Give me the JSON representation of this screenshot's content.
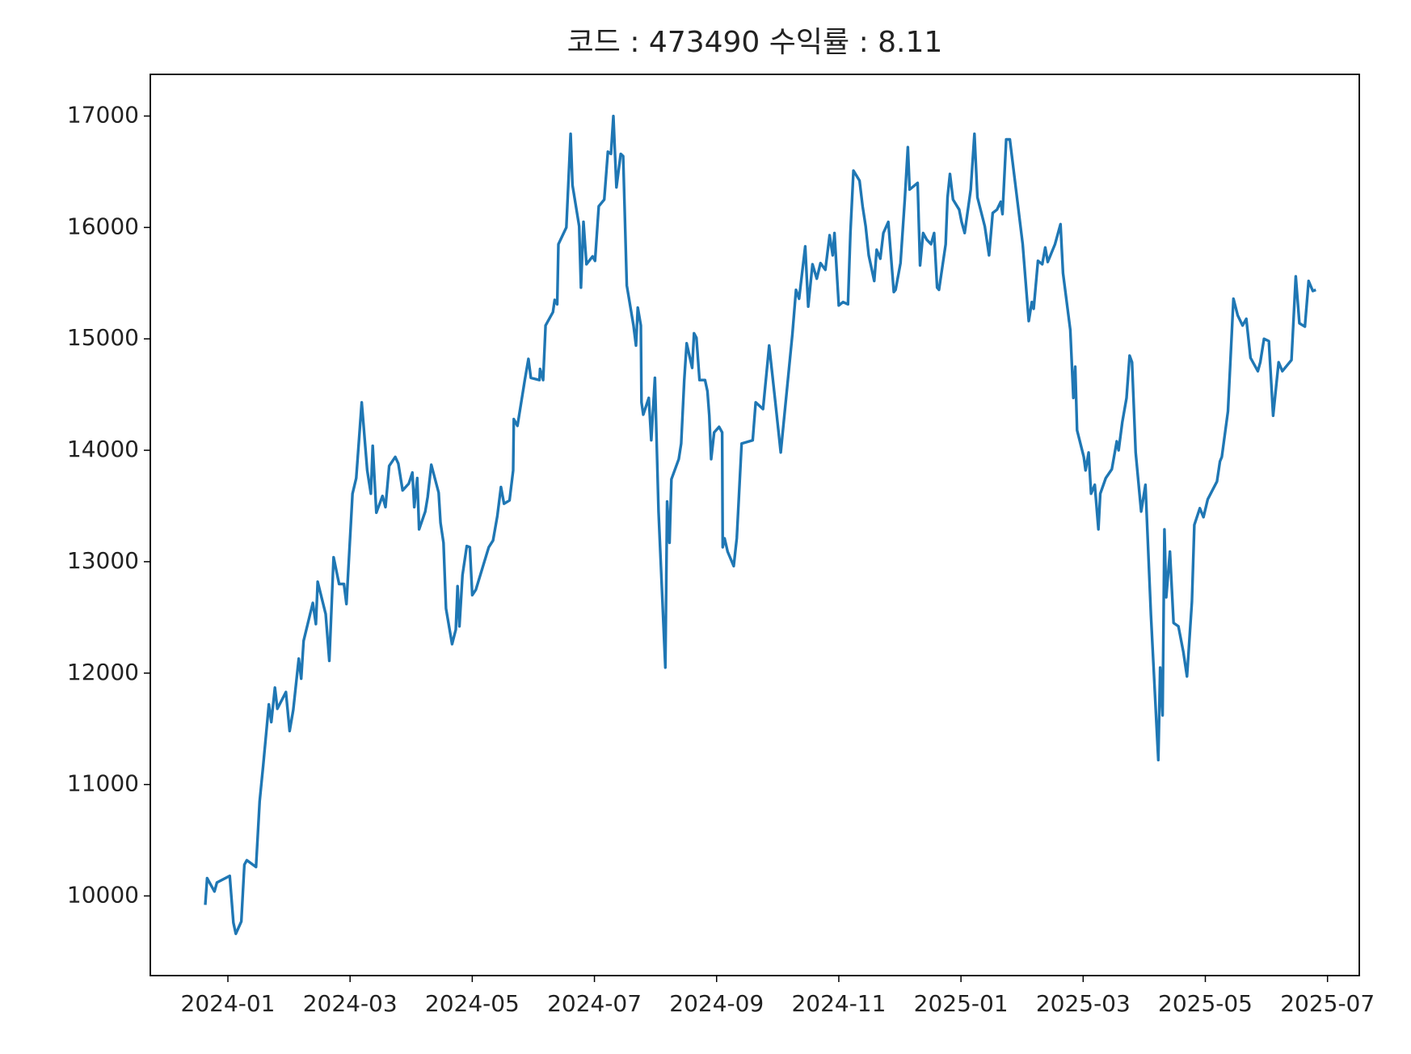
{
  "chart_data": {
    "type": "line",
    "title": "코드 : 473490 수익률 : 8.11",
    "color": "#1f77b4",
    "xlim": [
      -1.27,
      18.52
    ],
    "xticks": [
      {
        "value": 0,
        "label": "2024-01"
      },
      {
        "value": 2,
        "label": "2024-03"
      },
      {
        "value": 4,
        "label": "2024-05"
      },
      {
        "value": 6,
        "label": "2024-07"
      },
      {
        "value": 8,
        "label": "2024-09"
      },
      {
        "value": 10,
        "label": "2024-11"
      },
      {
        "value": 12,
        "label": "2025-01"
      },
      {
        "value": 14,
        "label": "2025-03"
      },
      {
        "value": 16,
        "label": "2025-05"
      },
      {
        "value": 18,
        "label": "2025-07"
      }
    ],
    "ylim": [
      9285,
      17374
    ],
    "yticks": [
      10000,
      11000,
      12000,
      13000,
      14000,
      15000,
      16000,
      17000
    ],
    "x": [
      -0.37,
      -0.34,
      -0.22,
      -0.18,
      0.03,
      0.09,
      0.13,
      0.22,
      0.27,
      0.31,
      0.46,
      0.52,
      0.58,
      0.67,
      0.71,
      0.77,
      0.81,
      0.95,
      1.01,
      1.07,
      1.16,
      1.2,
      1.24,
      1.39,
      1.44,
      1.47,
      1.6,
      1.66,
      1.73,
      1.82,
      1.9,
      1.94,
      2.04,
      2.1,
      2.19,
      2.28,
      2.34,
      2.37,
      2.43,
      2.53,
      2.58,
      2.64,
      2.74,
      2.79,
      2.86,
      2.96,
      3.02,
      3.05,
      3.1,
      3.13,
      3.23,
      3.27,
      3.33,
      3.45,
      3.48,
      3.53,
      3.57,
      3.67,
      3.73,
      3.76,
      3.79,
      3.84,
      3.91,
      3.96,
      4.0,
      4.06,
      4.27,
      4.34,
      4.41,
      4.47,
      4.52,
      4.61,
      4.67,
      4.68,
      4.74,
      4.86,
      4.92,
      4.96,
      5.1,
      5.11,
      5.16,
      5.2,
      5.32,
      5.35,
      5.39,
      5.41,
      5.54,
      5.61,
      5.64,
      5.75,
      5.78,
      5.82,
      5.87,
      5.97,
      6.01,
      6.07,
      6.16,
      6.22,
      6.27,
      6.31,
      6.36,
      6.43,
      6.47,
      6.53,
      6.64,
      6.68,
      6.71,
      6.76,
      6.77,
      6.8,
      6.89,
      6.93,
      6.99,
      7.05,
      7.16,
      7.19,
      7.23,
      7.26,
      7.38,
      7.42,
      7.47,
      7.51,
      7.6,
      7.63,
      7.67,
      7.72,
      7.81,
      7.85,
      7.88,
      7.91,
      7.96,
      8.04,
      8.09,
      8.1,
      8.13,
      8.18,
      8.28,
      8.33,
      8.41,
      8.59,
      8.64,
      8.76,
      8.86,
      8.96,
      9.05,
      9.1,
      9.24,
      9.3,
      9.35,
      9.45,
      9.5,
      9.57,
      9.64,
      9.7,
      9.78,
      9.85,
      9.9,
      9.93,
      10.0,
      10.07,
      10.15,
      10.19,
      10.24,
      10.34,
      10.39,
      10.44,
      10.49,
      10.58,
      10.62,
      10.68,
      10.73,
      10.81,
      10.9,
      10.93,
      11.01,
      11.08,
      11.13,
      11.16,
      11.29,
      11.33,
      11.38,
      11.44,
      11.51,
      11.56,
      11.61,
      11.64,
      11.75,
      11.78,
      11.82,
      11.87,
      11.97,
      12.01,
      12.06,
      12.16,
      12.22,
      12.27,
      12.39,
      12.46,
      12.52,
      12.59,
      12.65,
      12.68,
      12.74,
      12.8,
      13.01,
      13.11,
      13.16,
      13.19,
      13.26,
      13.33,
      13.38,
      13.42,
      13.54,
      13.63,
      13.67,
      13.79,
      13.84,
      13.87,
      13.9,
      14.01,
      14.04,
      14.09,
      14.13,
      14.19,
      14.25,
      14.28,
      14.37,
      14.47,
      14.55,
      14.58,
      14.64,
      14.71,
      14.76,
      14.8,
      14.86,
      14.95,
      15.02,
      15.11,
      15.23,
      15.26,
      15.3,
      15.33,
      15.36,
      15.42,
      15.48,
      15.56,
      15.64,
      15.7,
      15.78,
      15.82,
      15.91,
      15.97,
      16.04,
      16.19,
      16.24,
      16.27,
      16.37,
      16.46,
      16.53,
      16.61,
      16.67,
      16.74,
      16.86,
      16.9,
      16.96,
      17.04,
      17.11,
      17.2,
      17.26,
      17.41,
      17.48,
      17.54,
      17.63,
      17.69,
      17.76,
      17.81
    ],
    "values": [
      9920,
      10160,
      10040,
      10120,
      10180,
      9760,
      9660,
      9770,
      10280,
      10320,
      10260,
      10850,
      11180,
      11720,
      11560,
      11870,
      11680,
      11830,
      11480,
      11670,
      12130,
      11950,
      12290,
      12630,
      12440,
      12820,
      12530,
      12110,
      13040,
      12800,
      12800,
      12620,
      13610,
      13750,
      14430,
      13820,
      13610,
      14040,
      13440,
      13590,
      13490,
      13860,
      13940,
      13880,
      13640,
      13700,
      13800,
      13490,
      13750,
      13290,
      13450,
      13580,
      13870,
      13620,
      13350,
      13170,
      12580,
      12260,
      12390,
      12780,
      12420,
      12880,
      13140,
      13130,
      12700,
      12750,
      13130,
      13190,
      13410,
      13670,
      13520,
      13550,
      13820,
      14280,
      14220,
      14630,
      14820,
      14650,
      14630,
      14730,
      14630,
      15120,
      15240,
      15350,
      15310,
      15850,
      16000,
      16840,
      16380,
      16010,
      15460,
      16050,
      15670,
      15740,
      15700,
      16190,
      16250,
      16680,
      16660,
      17000,
      16360,
      16660,
      16640,
      15480,
      15120,
      14940,
      15280,
      15120,
      14430,
      14320,
      14470,
      14090,
      14650,
      13450,
      12050,
      13540,
      13170,
      13740,
      13920,
      14060,
      14630,
      14960,
      14740,
      15050,
      15010,
      14630,
      14630,
      14530,
      14310,
      13920,
      14160,
      14210,
      14160,
      13130,
      13210,
      13090,
      12960,
      13210,
      14060,
      14090,
      14430,
      14370,
      14940,
      14440,
      13980,
      14260,
      15040,
      15440,
      15360,
      15830,
      15290,
      15670,
      15540,
      15680,
      15620,
      15930,
      15750,
      15950,
      15300,
      15330,
      15310,
      15950,
      16510,
      16420,
      16190,
      16010,
      15750,
      15520,
      15800,
      15720,
      15950,
      16050,
      15420,
      15440,
      15680,
      16250,
      16720,
      16340,
      16400,
      15660,
      15950,
      15890,
      15850,
      15950,
      15460,
      15440,
      15850,
      16270,
      16480,
      16250,
      16160,
      16050,
      15950,
      16340,
      16840,
      16270,
      16010,
      15750,
      16130,
      16160,
      16230,
      16120,
      16790,
      16790,
      15850,
      15160,
      15330,
      15270,
      15700,
      15670,
      15820,
      15690,
      15850,
      16030,
      15590,
      15080,
      14470,
      14750,
      14180,
      13940,
      13820,
      13980,
      13610,
      13690,
      13290,
      13610,
      13750,
      13830,
      14080,
      14000,
      14250,
      14470,
      14850,
      14790,
      13980,
      13450,
      13690,
      12520,
      11220,
      12050,
      11620,
      13290,
      12680,
      13090,
      12450,
      12420,
      12190,
      11970,
      12640,
      13330,
      13480,
      13400,
      13560,
      13720,
      13900,
      13940,
      14350,
      15360,
      15210,
      15120,
      15180,
      14830,
      14710,
      14790,
      15000,
      14980,
      14310,
      14790,
      14710,
      14810,
      15560,
      15140,
      15110,
      15520,
      15430,
      15440
    ]
  }
}
